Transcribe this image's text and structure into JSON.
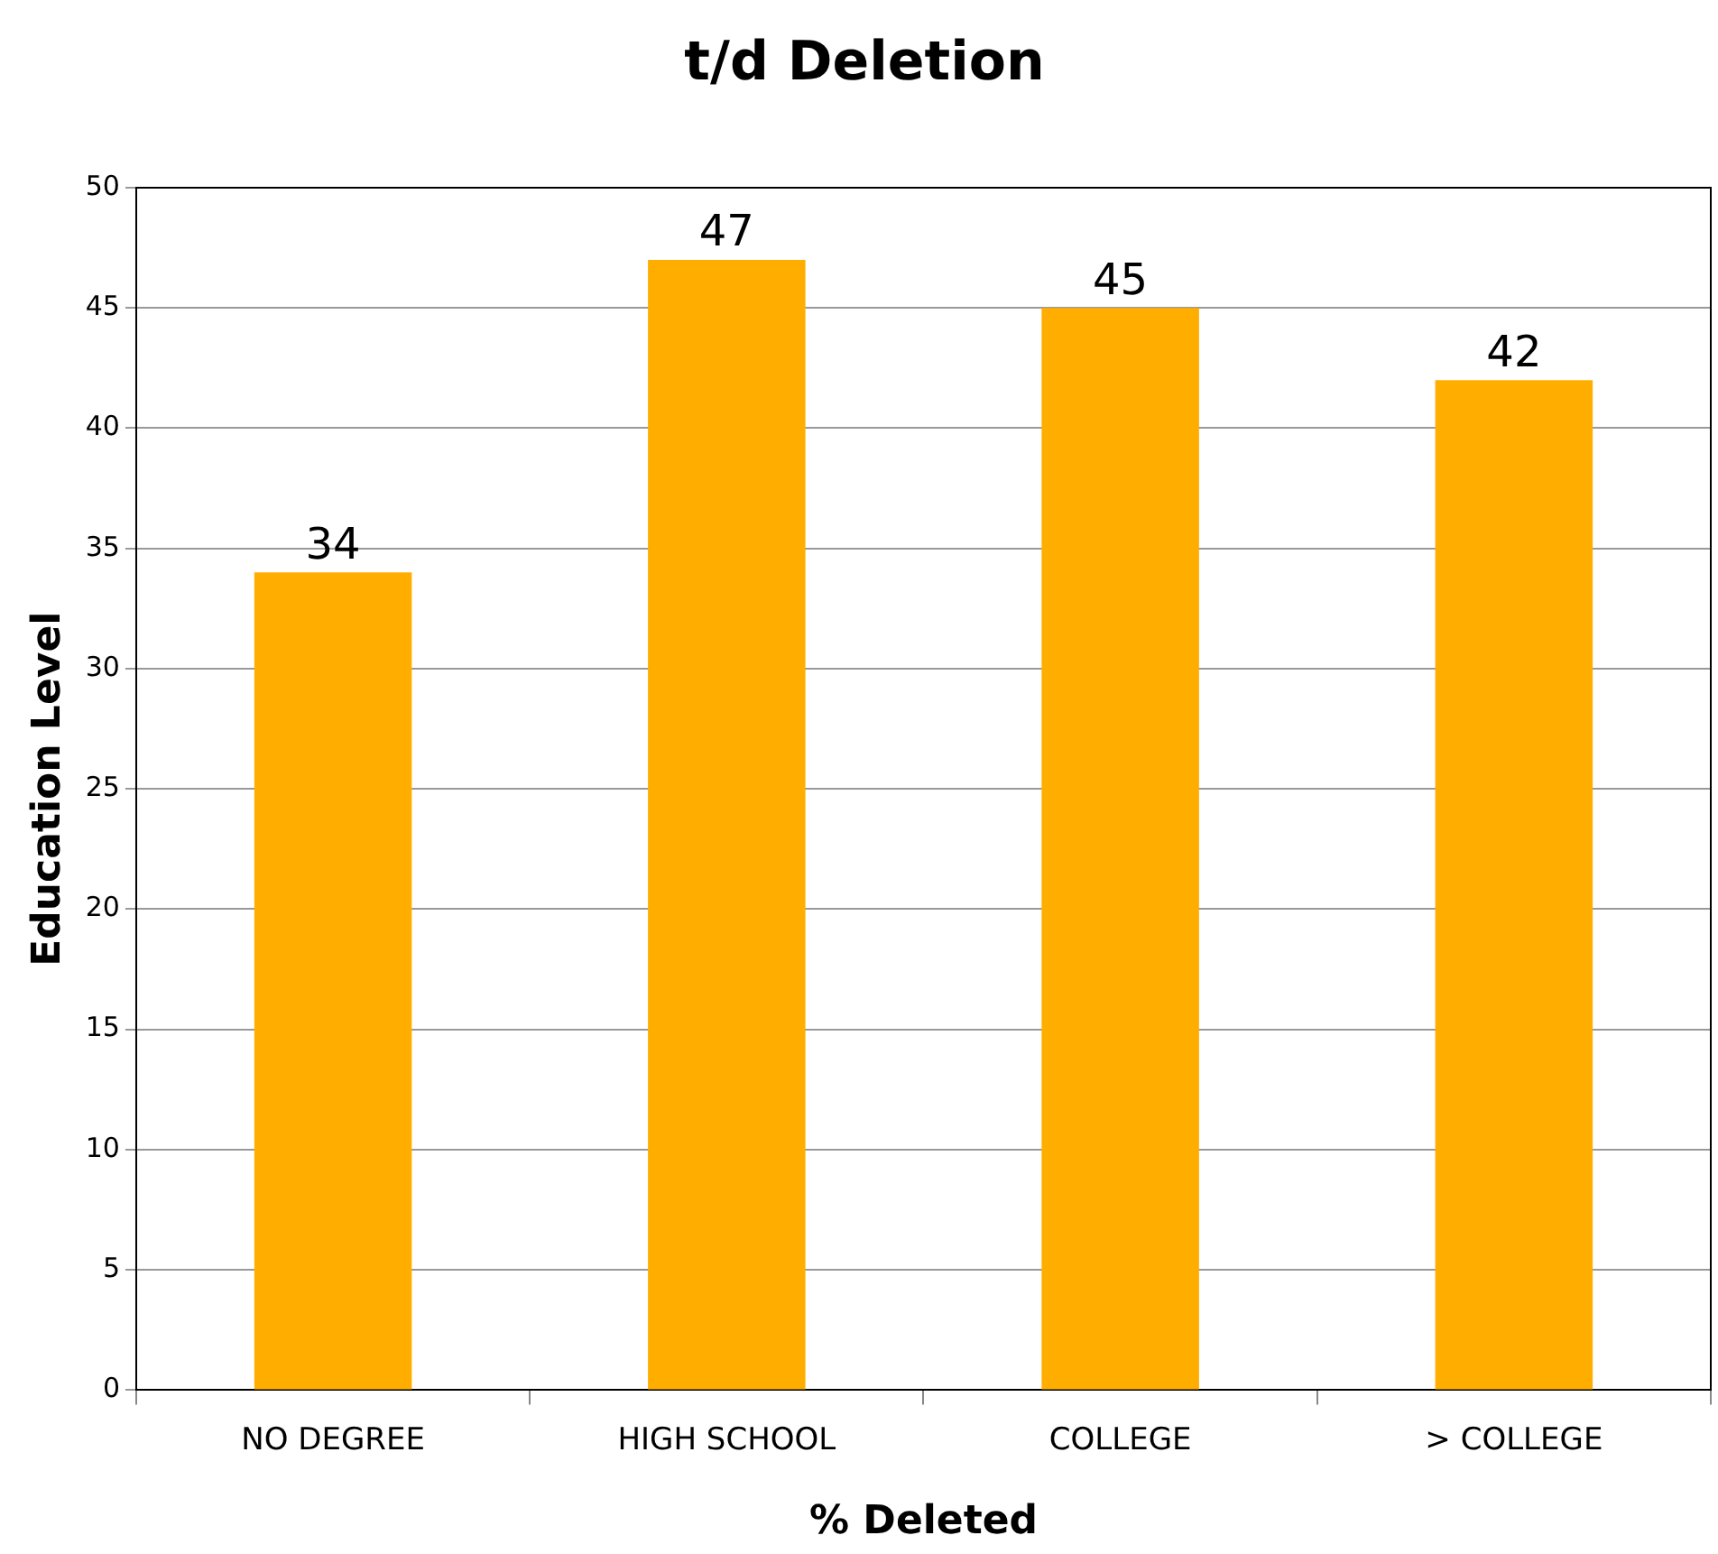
{
  "chart_data": {
    "type": "bar",
    "title": "t/d Deletion",
    "xlabel": "% Deleted",
    "ylabel": "Education Level",
    "categories": [
      "NO DEGREE",
      "HIGH SCHOOL",
      "COLLEGE",
      "> COLLEGE"
    ],
    "values": [
      34,
      47,
      45,
      42
    ],
    "color": "#ffae00",
    "ylim": [
      0,
      50
    ],
    "yticks": [
      0,
      5,
      10,
      15,
      20,
      25,
      30,
      35,
      40,
      45,
      50
    ],
    "grid": "y",
    "data_labels": true,
    "legend": false
  }
}
